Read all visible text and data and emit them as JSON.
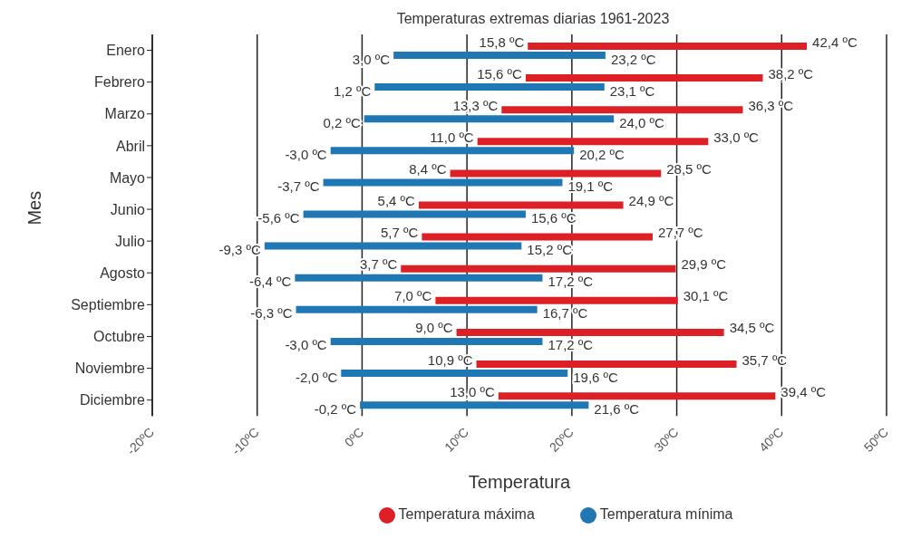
{
  "chart_data": {
    "type": "bar",
    "orientation": "horizontal",
    "title": "Temperaturas extremas diarias 1961-2023",
    "xlabel": "Temperatura",
    "ylabel": "Mes",
    "categories": [
      "Enero",
      "Febrero",
      "Marzo",
      "Abril",
      "Mayo",
      "Junio",
      "Julio",
      "Agosto",
      "Septiembre",
      "Octubre",
      "Noviembre",
      "Diciembre"
    ],
    "series": [
      {
        "name": "Temperatura máxima",
        "color": "#dd1f26",
        "base": [
          15.8,
          15.6,
          13.3,
          11.0,
          8.4,
          5.4,
          5.7,
          3.7,
          7.0,
          9.0,
          10.9,
          13.0
        ],
        "values": [
          26.6,
          22.6,
          23.0,
          22.0,
          20.1,
          19.5,
          22.0,
          26.2,
          23.1,
          25.5,
          24.8,
          26.4
        ]
      },
      {
        "name": "Temperatura mínima",
        "color": "#1f77b4",
        "base": [
          3.0,
          1.2,
          0.2,
          -3.0,
          -3.7,
          -5.6,
          -9.3,
          -6.4,
          -6.3,
          -3.0,
          -2.0,
          -0.2
        ],
        "values": [
          20.2,
          21.9,
          23.8,
          23.2,
          22.8,
          21.2,
          24.5,
          23.6,
          23.0,
          20.2,
          21.6,
          21.8
        ]
      }
    ],
    "xlim": [
      -20,
      50
    ],
    "xticks": [
      {
        "value": -20,
        "label": "-20ºC"
      },
      {
        "value": -10,
        "label": "-10ºC"
      },
      {
        "value": 0,
        "label": "0ºC"
      },
      {
        "value": 10,
        "label": "10ºC"
      },
      {
        "value": 20,
        "label": "20ºC"
      },
      {
        "value": 30,
        "label": "30ºC"
      },
      {
        "value": 40,
        "label": "40ºC"
      },
      {
        "value": 50,
        "label": "50ºC"
      }
    ],
    "grid": "x",
    "legend": "bottom",
    "annotations": [
      {
        "text": "15,8 ºC",
        "x": 15.8,
        "y": "Enero"
      },
      {
        "text": "42,4 ºC",
        "x": 42.4,
        "y": "Enero"
      },
      {
        "text": "3,0 ºC",
        "x": 3.0,
        "y": "Enero"
      },
      {
        "text": "23,2 ºC",
        "x": 23.2,
        "y": "Enero"
      },
      {
        "text": "15,6 ºC",
        "x": 15.6,
        "y": "Febrero"
      },
      {
        "text": "38,2 ºC",
        "x": 38.2,
        "y": "Febrero"
      },
      {
        "text": "1,2 ºC",
        "x": 1.2,
        "y": "Febrero"
      },
      {
        "text": "23,1 ºC",
        "x": 23.1,
        "y": "Febrero"
      },
      {
        "text": "13,3 ºC",
        "x": 13.3,
        "y": "Marzo"
      },
      {
        "text": "36,3 ºC",
        "x": 36.3,
        "y": "Marzo"
      },
      {
        "text": "0,2 ºC",
        "x": 0.2,
        "y": "Marzo"
      },
      {
        "text": "24,0 ºC",
        "x": 24.0,
        "y": "Marzo"
      },
      {
        "text": "11,0 ºC",
        "x": 11.0,
        "y": "Abril"
      },
      {
        "text": "33,0 ºC",
        "x": 33.0,
        "y": "Abril"
      },
      {
        "text": "-3,0 ºC",
        "x": -3.0,
        "y": "Abril"
      },
      {
        "text": "20,2 ºC",
        "x": 20.2,
        "y": "Abril"
      },
      {
        "text": "8,4 ºC",
        "x": 8.4,
        "y": "Mayo"
      },
      {
        "text": "28,5 ºC",
        "x": 28.5,
        "y": "Mayo"
      },
      {
        "text": "-3,7 ºC",
        "x": -3.7,
        "y": "Mayo"
      },
      {
        "text": "19,1 ºC",
        "x": 19.1,
        "y": "Mayo"
      },
      {
        "text": "5,4 ºC",
        "x": 5.4,
        "y": "Junio"
      },
      {
        "text": "24,9 ºC",
        "x": 24.9,
        "y": "Junio"
      },
      {
        "text": "-5,6 ºC",
        "x": -5.6,
        "y": "Junio"
      },
      {
        "text": "15,6 ºC",
        "x": 15.6,
        "y": "Junio"
      },
      {
        "text": "5,7 ºC",
        "x": 5.7,
        "y": "Julio"
      },
      {
        "text": "27,7 ºC",
        "x": 27.7,
        "y": "Julio"
      },
      {
        "text": "-9,3 ºC",
        "x": -9.3,
        "y": "Julio"
      },
      {
        "text": "15,2 ºC",
        "x": 15.2,
        "y": "Julio"
      },
      {
        "text": "3,7 ºC",
        "x": 3.7,
        "y": "Agosto"
      },
      {
        "text": "29,9 ºC",
        "x": 29.9,
        "y": "Agosto"
      },
      {
        "text": "-6,4 ºC",
        "x": -6.4,
        "y": "Agosto"
      },
      {
        "text": "17,2 ºC",
        "x": 17.2,
        "y": "Agosto"
      },
      {
        "text": "7,0 ºC",
        "x": 7.0,
        "y": "Septiembre"
      },
      {
        "text": "30,1 ºC",
        "x": 30.1,
        "y": "Septiembre"
      },
      {
        "text": "-6,3 ºC",
        "x": -6.3,
        "y": "Septiembre"
      },
      {
        "text": "16,7 ºC",
        "x": 16.7,
        "y": "Septiembre"
      },
      {
        "text": "9,0 ºC",
        "x": 9.0,
        "y": "Octubre"
      },
      {
        "text": "34,5 ºC",
        "x": 34.5,
        "y": "Octubre"
      },
      {
        "text": "-3,0 ºC",
        "x": -3.0,
        "y": "Octubre"
      },
      {
        "text": "17,2 ºC",
        "x": 17.2,
        "y": "Octubre"
      },
      {
        "text": "10,9 ºC",
        "x": 10.9,
        "y": "Noviembre"
      },
      {
        "text": "35,7 ºC",
        "x": 35.7,
        "y": "Noviembre"
      },
      {
        "text": "-2,0 ºC",
        "x": -2.0,
        "y": "Noviembre"
      },
      {
        "text": "19,6 ºC",
        "x": 19.6,
        "y": "Noviembre"
      },
      {
        "text": "13,0 ºC",
        "x": 13.0,
        "y": "Diciembre"
      },
      {
        "text": "39,4 ºC",
        "x": 39.4,
        "y": "Diciembre"
      },
      {
        "text": "-0,2 ºC",
        "x": -0.2,
        "y": "Diciembre"
      },
      {
        "text": "21,6 ºC",
        "x": 21.6,
        "y": "Diciembre"
      }
    ]
  }
}
